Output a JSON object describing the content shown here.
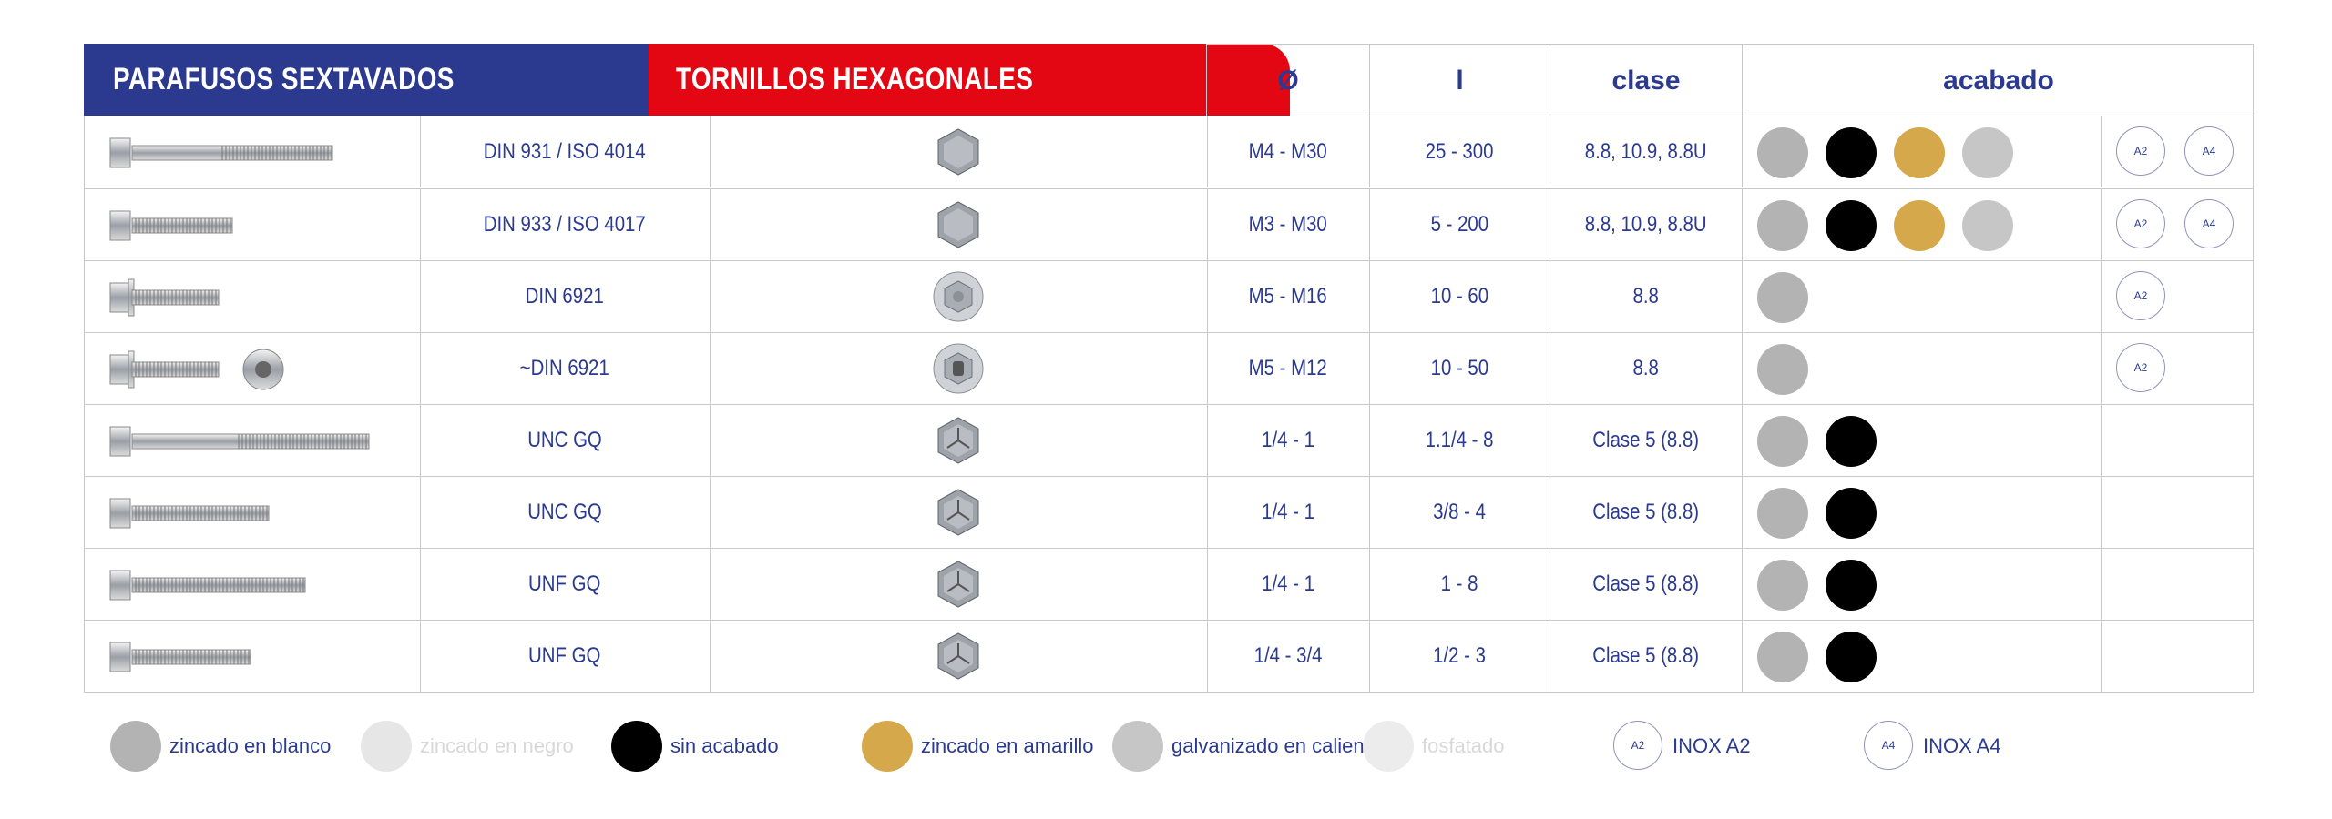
{
  "header": {
    "title_left": "PARAFUSOS SEXTAVADOS",
    "title_right": "TORNILLOS HEXAGONALES",
    "col_diameter": "Ø",
    "col_length": "l",
    "col_class": "clase",
    "col_finish": "acabado"
  },
  "colors": {
    "header_blue": "#2b3a8f",
    "header_red": "#e30613",
    "zinc_white": "#b3b3b3",
    "zinc_black": "#e6e6e6",
    "no_finish": "#000000",
    "zinc_yellow": "#d4a84b",
    "hot_galvanized": "#c6c6c6",
    "phosphated": "#ececec"
  },
  "rows": [
    {
      "norm": "DIN 931 / ISO 4014",
      "diameter": "M4 - M30",
      "length": "25 - 300",
      "class": "8.8, 10.9, 8.8U",
      "finishes": [
        "zinc_white",
        "no_finish",
        "zinc_yellow",
        "hot_galvanized"
      ],
      "inox": [
        "A2",
        "A4"
      ]
    },
    {
      "norm": "DIN 933 / ISO 4017",
      "diameter": "M3 - M30",
      "length": "5 - 200",
      "class": "8.8, 10.9, 8.8U",
      "finishes": [
        "zinc_white",
        "no_finish",
        "zinc_yellow",
        "hot_galvanized"
      ],
      "inox": [
        "A2",
        "A4"
      ]
    },
    {
      "norm": "DIN 6921",
      "diameter": "M5 - M16",
      "length": "10 - 60",
      "class": "8.8",
      "finishes": [
        "zinc_white"
      ],
      "inox": [
        "A2"
      ]
    },
    {
      "norm": "~DIN 6921",
      "diameter": "M5 - M12",
      "length": "10 - 50",
      "class": "8.8",
      "finishes": [
        "zinc_white"
      ],
      "inox": [
        "A2"
      ]
    },
    {
      "norm": "UNC GQ",
      "diameter": "1/4 - 1",
      "length": "1.1/4 - 8",
      "class": "Clase 5 (8.8)",
      "finishes": [
        "zinc_white",
        "no_finish"
      ],
      "inox": []
    },
    {
      "norm": "UNC GQ",
      "diameter": "1/4 - 1",
      "length": "3/8 - 4",
      "class": "Clase 5 (8.8)",
      "finishes": [
        "zinc_white",
        "no_finish"
      ],
      "inox": []
    },
    {
      "norm": "UNF GQ",
      "diameter": "1/4 - 1",
      "length": "1 - 8",
      "class": "Clase 5 (8.8)",
      "finishes": [
        "zinc_white",
        "no_finish"
      ],
      "inox": []
    },
    {
      "norm": "UNF GQ",
      "diameter": "1/4 - 3/4",
      "length": "1/2 - 3",
      "class": "Clase 5 (8.8)",
      "finishes": [
        "zinc_white",
        "no_finish"
      ],
      "inox": []
    }
  ],
  "legend": {
    "zinc_white": "zincado en blanco",
    "zinc_black": "zincado en negro",
    "no_finish": "sin acabado",
    "zinc_yellow": "zincado en amarillo",
    "hot_galvanized": "galvanizado en caliente",
    "phosphated": "fosfatado",
    "inox_a2_badge": "A2",
    "inox_a2": "INOX A2",
    "inox_a4_badge": "A4",
    "inox_a4": "INOX A4"
  }
}
